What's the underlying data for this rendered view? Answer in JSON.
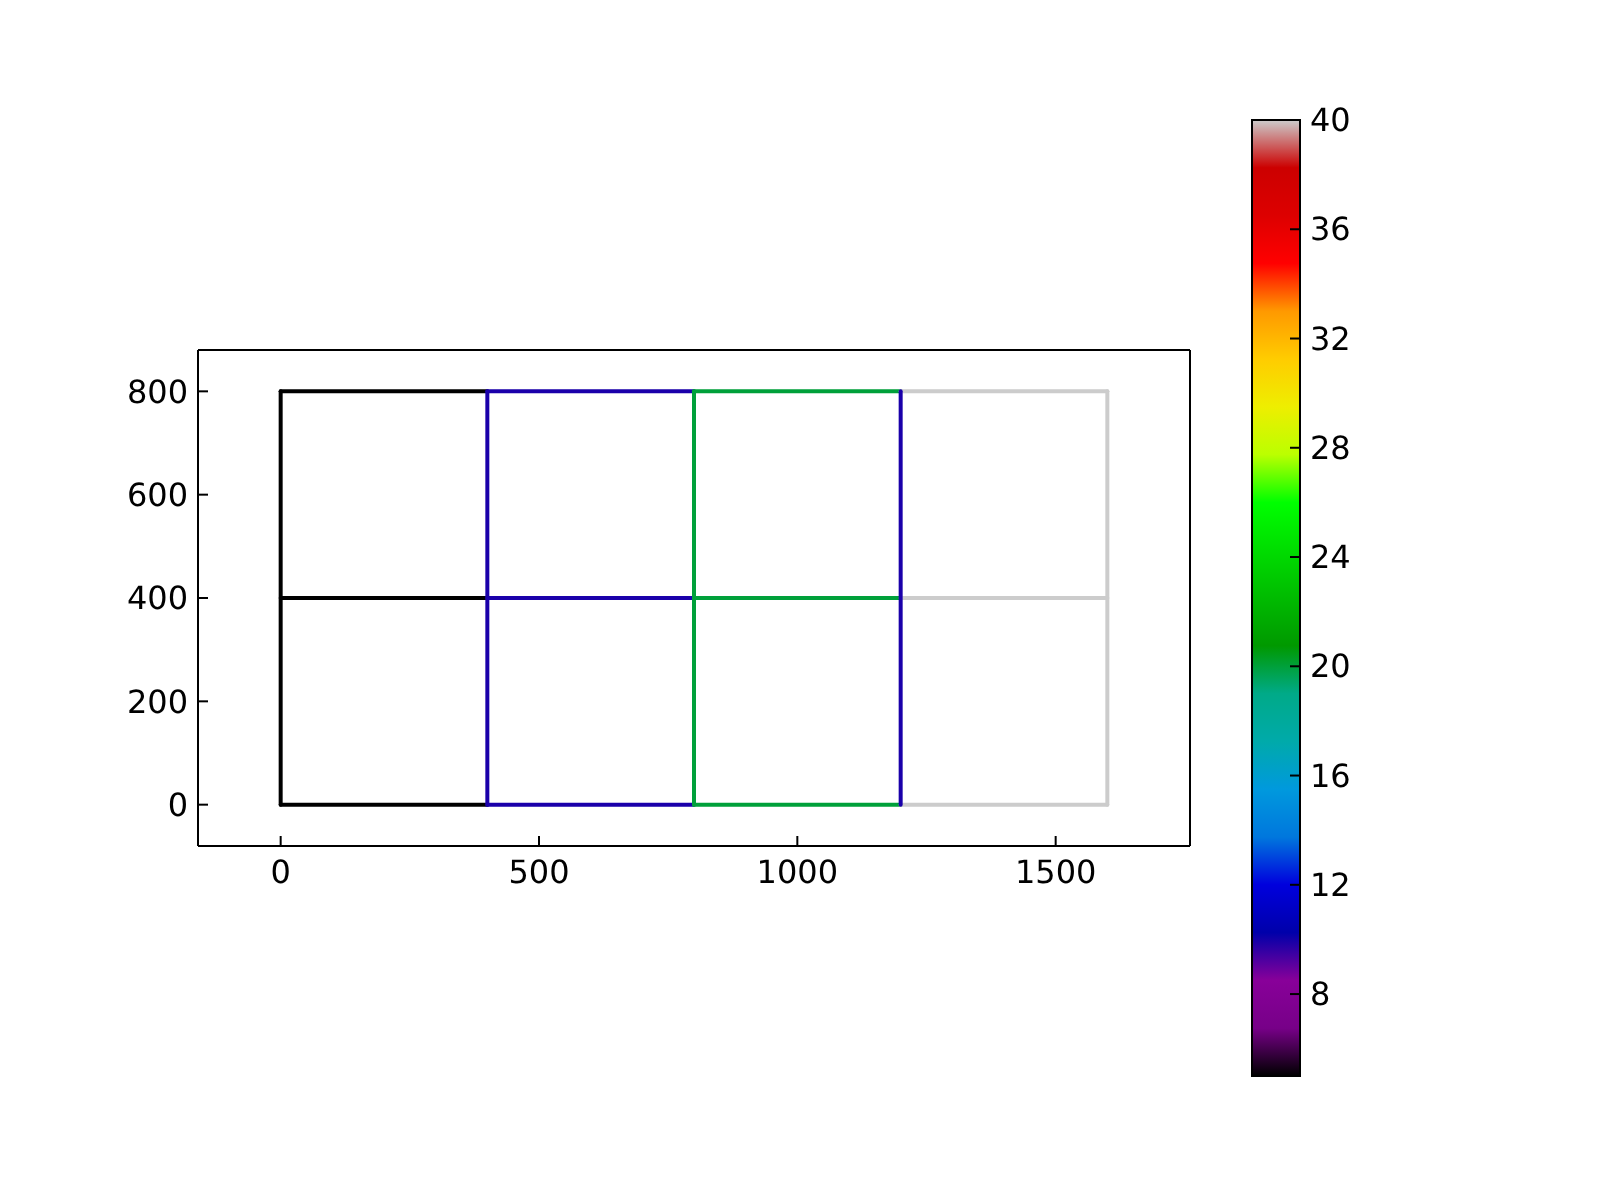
{
  "chart_data": {
    "type": "line",
    "xlim": [
      -160,
      1760
    ],
    "xticks": [
      0,
      500,
      1000,
      1500
    ],
    "ylim": [
      -80,
      880
    ],
    "yticks": [
      0,
      200,
      400,
      600,
      800
    ],
    "clim": [
      5,
      40
    ],
    "cticks": [
      8,
      12,
      16,
      20,
      24,
      28,
      32,
      36,
      40
    ],
    "series": [
      {
        "x": [
          0,
          400
        ],
        "values": [
          0,
          0
        ],
        "color": "#000000"
      },
      {
        "x": [
          0,
          400
        ],
        "values": [
          400,
          400
        ],
        "color": "#000000"
      },
      {
        "x": [
          0,
          400
        ],
        "values": [
          800,
          800
        ],
        "color": "#000000"
      },
      {
        "x": [
          400,
          800
        ],
        "values": [
          0,
          0
        ],
        "color": "#1a00aa"
      },
      {
        "x": [
          400,
          800
        ],
        "values": [
          400,
          400
        ],
        "color": "#1a00aa"
      },
      {
        "x": [
          400,
          800
        ],
        "values": [
          800,
          800
        ],
        "color": "#1a00aa"
      },
      {
        "x": [
          800,
          1200
        ],
        "values": [
          0,
          0
        ],
        "color": "#00a03a"
      },
      {
        "x": [
          800,
          1200
        ],
        "values": [
          400,
          400
        ],
        "color": "#00a03a"
      },
      {
        "x": [
          800,
          1200
        ],
        "values": [
          800,
          800
        ],
        "color": "#00a03a"
      },
      {
        "x": [
          1200,
          1600
        ],
        "values": [
          0,
          0
        ],
        "color": "#cccccc"
      },
      {
        "x": [
          1200,
          1600
        ],
        "values": [
          400,
          400
        ],
        "color": "#cccccc"
      },
      {
        "x": [
          1200,
          1600
        ],
        "values": [
          800,
          800
        ],
        "color": "#cccccc"
      },
      {
        "x": [
          0,
          0,
          0
        ],
        "values": [
          0,
          400,
          800
        ],
        "color": "#000000"
      },
      {
        "x": [
          400,
          400,
          400
        ],
        "values": [
          0,
          400,
          800
        ],
        "color": "#1a00aa"
      },
      {
        "x": [
          800,
          800,
          800
        ],
        "values": [
          0,
          400,
          800
        ],
        "color": "#00a03a"
      },
      {
        "x": [
          1200,
          1200,
          1200
        ],
        "values": [
          0,
          400,
          800
        ],
        "color": "#1a00aa"
      },
      {
        "x": [
          1600,
          1600,
          1600
        ],
        "values": [
          0,
          400,
          800
        ],
        "color": "#cccccc"
      }
    ]
  }
}
